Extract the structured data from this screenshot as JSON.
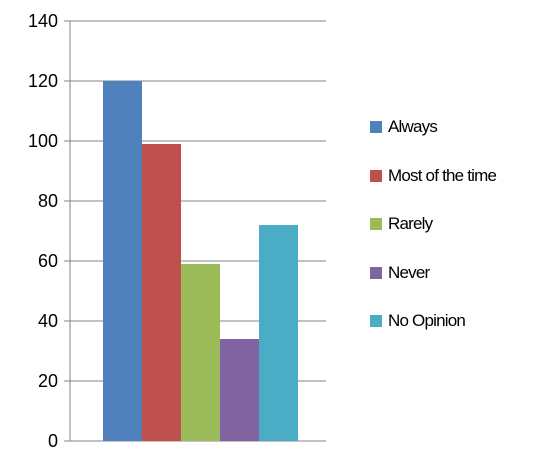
{
  "chart_data": {
    "type": "bar",
    "title": "",
    "xlabel": "",
    "ylabel": "",
    "ylim": [
      0,
      140
    ],
    "yticks": [
      0,
      20,
      40,
      60,
      80,
      100,
      120,
      140
    ],
    "grid": true,
    "legend_position": "right",
    "series": [
      {
        "name": "Always",
        "value": 120,
        "color": "#4F81BD"
      },
      {
        "name": "Most of the time",
        "value": 99,
        "color": "#C0504D"
      },
      {
        "name": "Rarely",
        "value": 59,
        "color": "#9BBB59"
      },
      {
        "name": "Never",
        "value": 34,
        "color": "#8064A2"
      },
      {
        "name": "No Opinion",
        "value": 72,
        "color": "#4BACC6"
      }
    ]
  }
}
